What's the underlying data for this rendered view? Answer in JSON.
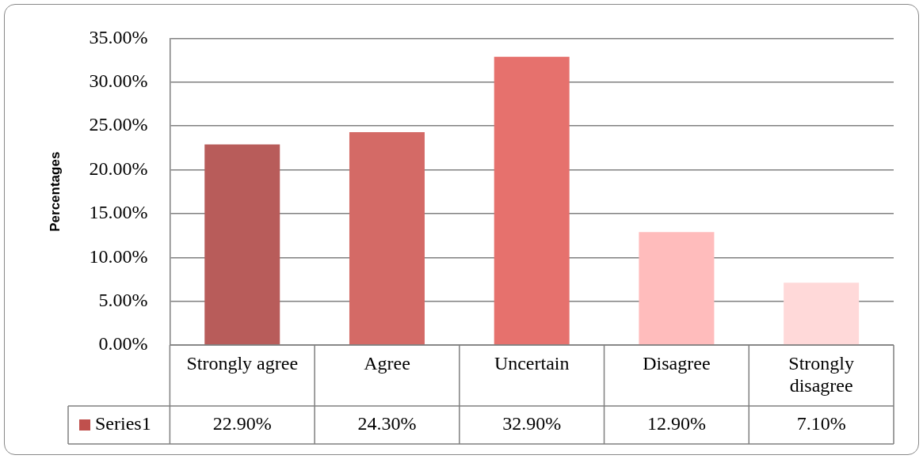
{
  "chart_data": {
    "type": "bar",
    "ylabel": "Percentages",
    "categories": [
      "Strongly agree",
      "Agree",
      "Uncertain",
      "Disagree",
      "Strongly disagree"
    ],
    "series": [
      {
        "name": "Series1",
        "color": "#c0504d",
        "colors": [
          "#b85c5a",
          "#d46a66",
          "#e6716d",
          "#ffbcbc",
          "#ffd9d9"
        ],
        "values": [
          22.9,
          24.3,
          32.9,
          12.9,
          7.1
        ],
        "value_labels": [
          "22.90%",
          "24.30%",
          "32.90%",
          "12.90%",
          "7.10%"
        ]
      }
    ],
    "ylim": [
      0,
      35
    ],
    "yticks": [
      {
        "value": 0,
        "label": "0.00%"
      },
      {
        "value": 5,
        "label": "5.00%"
      },
      {
        "value": 10,
        "label": "10.00%"
      },
      {
        "value": 15,
        "label": "15.00%"
      },
      {
        "value": 20,
        "label": "20.00%"
      },
      {
        "value": 25,
        "label": "25.00%"
      },
      {
        "value": 30,
        "label": "30.00%"
      },
      {
        "value": 35,
        "label": "35.00%"
      }
    ],
    "grid": "y",
    "legend": "bottom"
  }
}
